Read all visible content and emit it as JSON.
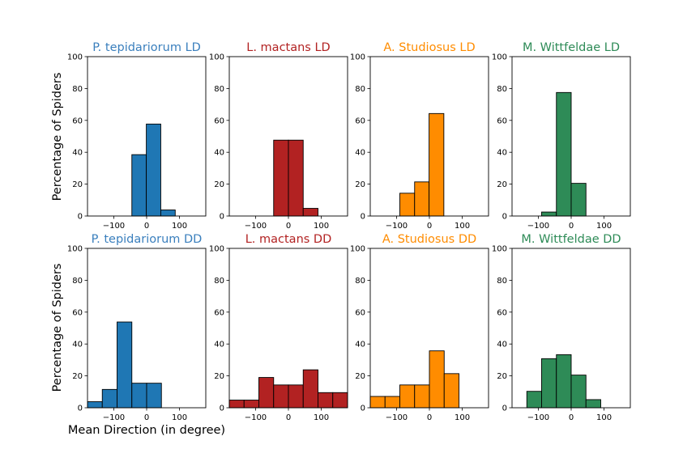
{
  "figure": {
    "ylabel": "Percentage of Spiders",
    "xlabel": "Mean Direction (in degree)"
  },
  "chart_data": [
    {
      "type": "bar",
      "title": "P. tepidariorum LD",
      "color": "#3a7fbd",
      "fill": "#1f77b4",
      "bins": [
        [
          -45,
          -1,
          38.5
        ],
        [
          -1,
          43,
          57.7
        ],
        [
          43,
          87,
          3.8
        ]
      ],
      "xlim": [
        -180,
        180
      ],
      "ylim": [
        0,
        100
      ],
      "xticks": [
        -100,
        0,
        100
      ],
      "yticks": [
        0,
        20,
        40,
        60,
        80,
        100
      ]
    },
    {
      "type": "bar",
      "title": "L. mactans LD",
      "color": "#b22222",
      "fill": "#b22222",
      "bins": [
        [
          -45,
          0,
          47.6
        ],
        [
          0,
          45,
          47.6
        ],
        [
          45,
          90,
          4.8
        ]
      ],
      "xlim": [
        -180,
        180
      ],
      "ylim": [
        0,
        100
      ],
      "xticks": [
        -100,
        0,
        100
      ],
      "yticks": [
        0,
        20,
        40,
        60,
        80,
        100
      ]
    },
    {
      "type": "bar",
      "title": "A. Studiosus LD",
      "color": "#ff8c00",
      "fill": "#ff8c00",
      "bins": [
        [
          -90,
          -45,
          14.3
        ],
        [
          -45,
          -1,
          21.4
        ],
        [
          -1,
          44,
          64.3
        ]
      ],
      "xlim": [
        -180,
        180
      ],
      "ylim": [
        0,
        100
      ],
      "xticks": [
        -100,
        0,
        100
      ],
      "yticks": [
        0,
        20,
        40,
        60,
        80,
        100
      ]
    },
    {
      "type": "bar",
      "title": "M. Wittfeldae LD",
      "color": "#2e8b57",
      "fill": "#2e8b57",
      "bins": [
        [
          -90,
          -45,
          2.5
        ],
        [
          -45,
          0,
          77.5
        ],
        [
          0,
          45,
          20.5
        ]
      ],
      "xlim": [
        -180,
        180
      ],
      "ylim": [
        0,
        100
      ],
      "xticks": [
        -100,
        0,
        100
      ],
      "yticks": [
        0,
        20,
        40,
        60,
        80,
        100
      ]
    },
    {
      "type": "bar",
      "title": "P. tepidariorum DD",
      "color": "#3a7fbd",
      "fill": "#1f77b4",
      "bins": [
        [
          -180,
          -135,
          3.8
        ],
        [
          -135,
          -90,
          11.5
        ],
        [
          -90,
          -45,
          53.8
        ],
        [
          -45,
          0,
          15.4
        ],
        [
          0,
          45,
          15.4
        ]
      ],
      "xlim": [
        -180,
        180
      ],
      "ylim": [
        0,
        100
      ],
      "xticks": [
        -100,
        0,
        100
      ],
      "yticks": [
        0,
        20,
        40,
        60,
        80,
        100
      ]
    },
    {
      "type": "bar",
      "title": "L. mactans DD",
      "color": "#b22222",
      "fill": "#b22222",
      "bins": [
        [
          -180,
          -135,
          4.8
        ],
        [
          -135,
          -90,
          4.8
        ],
        [
          -90,
          -45,
          19
        ],
        [
          -45,
          0,
          14.3
        ],
        [
          0,
          45,
          14.3
        ],
        [
          45,
          90,
          23.8
        ],
        [
          90,
          135,
          9.5
        ],
        [
          135,
          180,
          9.5
        ]
      ],
      "xlim": [
        -180,
        180
      ],
      "ylim": [
        0,
        100
      ],
      "xticks": [
        -100,
        0,
        100
      ],
      "yticks": [
        0,
        20,
        40,
        60,
        80,
        100
      ]
    },
    {
      "type": "bar",
      "title": "A. Studiosus DD",
      "color": "#ff8c00",
      "fill": "#ff8c00",
      "bins": [
        [
          -180,
          -135,
          7.1
        ],
        [
          -135,
          -90,
          7.1
        ],
        [
          -90,
          -45,
          14.3
        ],
        [
          -45,
          0,
          14.3
        ],
        [
          0,
          45,
          35.7
        ],
        [
          45,
          90,
          21.4
        ]
      ],
      "xlim": [
        -180,
        180
      ],
      "ylim": [
        0,
        100
      ],
      "xticks": [
        -100,
        0,
        100
      ],
      "yticks": [
        0,
        20,
        40,
        60,
        80,
        100
      ]
    },
    {
      "type": "bar",
      "title": "M. Wittfeldae DD",
      "color": "#2e8b57",
      "fill": "#2e8b57",
      "bins": [
        [
          -135,
          -90,
          10.3
        ],
        [
          -90,
          -45,
          30.8
        ],
        [
          -45,
          0,
          33.3
        ],
        [
          0,
          45,
          20.5
        ],
        [
          45,
          90,
          5.1
        ]
      ],
      "xlim": [
        -180,
        180
      ],
      "ylim": [
        0,
        100
      ],
      "xticks": [
        -100,
        0,
        100
      ],
      "yticks": [
        0,
        20,
        40,
        60,
        80,
        100
      ]
    }
  ]
}
